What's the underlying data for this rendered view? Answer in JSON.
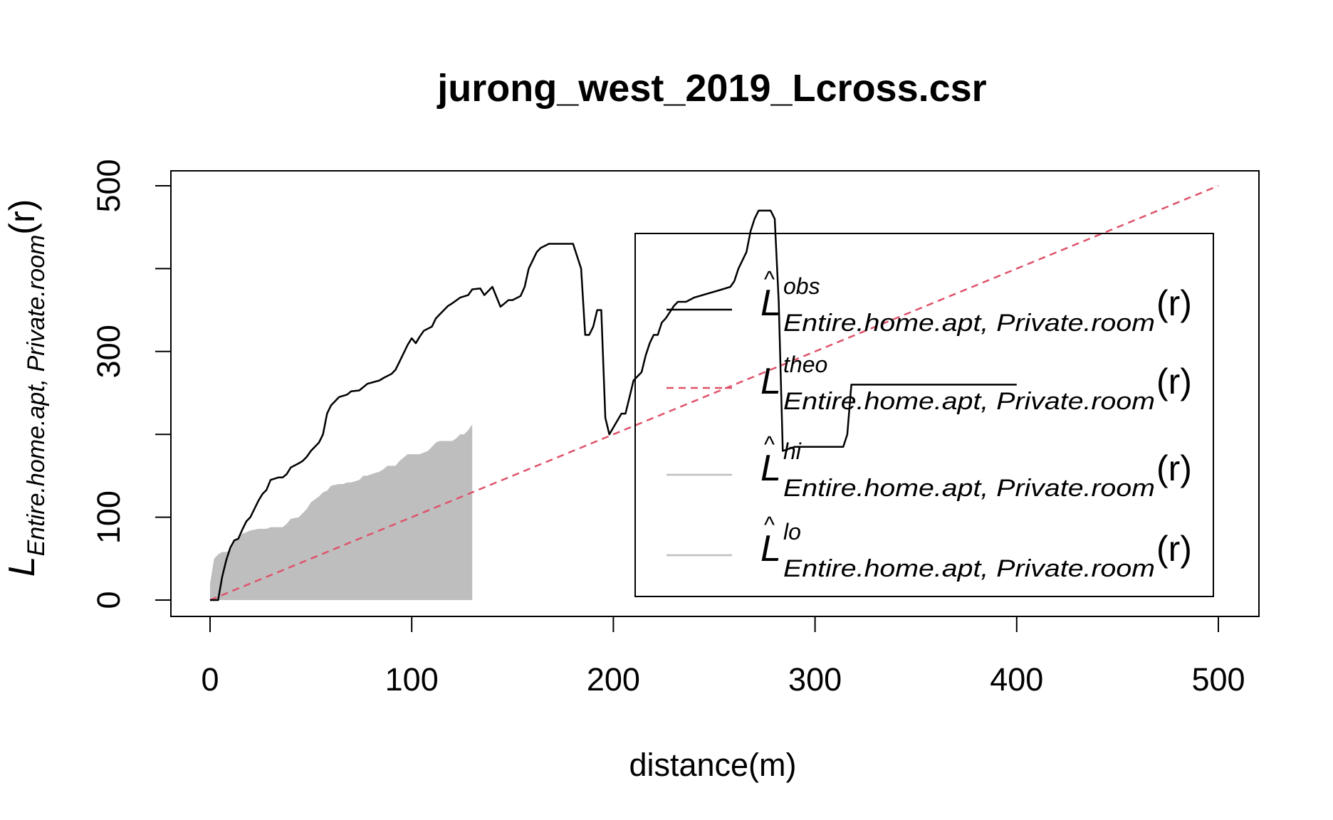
{
  "chart_data": {
    "type": "line",
    "title": "jurong_west_2019_Lcross.csr",
    "xlabel": "distance(m)",
    "ylabel": {
      "main": "L",
      "subscript": "Entire.home.apt, Private.room",
      "argument": "(r)"
    },
    "xlim": [
      0,
      500
    ],
    "ylim": [
      0,
      500
    ],
    "x_ticks": [
      "0",
      "100",
      "200",
      "300",
      "400",
      "500"
    ],
    "y_ticks": [
      "0",
      "100",
      "300",
      "500"
    ],
    "colors": {
      "obs": "#000000",
      "theo": "#DF536B",
      "envelope": "#BEBEBE"
    },
    "legend": {
      "placement": "right",
      "entries": [
        {
          "key": "obs",
          "main": "L",
          "hat": "^",
          "superscript": "obs",
          "subscript": "Entire.home.apt, Private.room",
          "argument": "(r)"
        },
        {
          "key": "theo",
          "main": "L",
          "hat": "",
          "superscript": "theo",
          "subscript": "Entire.home.apt, Private.room",
          "argument": "(r)"
        },
        {
          "key": "hi",
          "main": "L",
          "hat": "^",
          "superscript": "hi",
          "subscript": "Entire.home.apt, Private.room",
          "argument": "(r)"
        },
        {
          "key": "lo",
          "main": "L",
          "hat": "^",
          "superscript": "lo",
          "subscript": "Entire.home.apt, Private.room",
          "argument": "(r)"
        }
      ]
    },
    "series": [
      {
        "key": "obs",
        "x": [
          0,
          4,
          6,
          8,
          10,
          12,
          14,
          16,
          18,
          20,
          22,
          24,
          26,
          28,
          30,
          34,
          36,
          38,
          40,
          44,
          46,
          48,
          50,
          54,
          56,
          58,
          60,
          62,
          64,
          68,
          70,
          74,
          78,
          84,
          86,
          90,
          92,
          94,
          96,
          98,
          100,
          102,
          104,
          106,
          110,
          112,
          114,
          118,
          120,
          124,
          128,
          130,
          134,
          136,
          138,
          140,
          144,
          146,
          148,
          150,
          154,
          156,
          158,
          162,
          164,
          168,
          170,
          180,
          184,
          186,
          188,
          190,
          192,
          194,
          196,
          198,
          204,
          206,
          208,
          210,
          214,
          216,
          218,
          220,
          222,
          224,
          226,
          230,
          232,
          236,
          240,
          254,
          258,
          260,
          262,
          266,
          268,
          270,
          272,
          278,
          280,
          282,
          284,
          290,
          296,
          300,
          306,
          314,
          316,
          318,
          320,
          340,
          360,
          380,
          400
        ],
        "y": [
          0,
          0,
          28,
          48,
          63,
          72,
          74,
          85,
          95,
          100,
          110,
          120,
          128,
          133,
          145,
          148,
          148,
          152,
          160,
          165,
          168,
          173,
          180,
          190,
          200,
          225,
          235,
          240,
          245,
          248,
          252,
          253,
          261,
          265,
          268,
          273,
          278,
          288,
          298,
          308,
          316,
          310,
          318,
          325,
          330,
          340,
          345,
          355,
          358,
          365,
          368,
          375,
          376,
          368,
          373,
          378,
          354,
          358,
          362,
          362,
          367,
          378,
          400,
          420,
          425,
          430,
          430,
          430,
          400,
          320,
          320,
          330,
          350,
          350,
          220,
          200,
          225,
          225,
          245,
          265,
          275,
          295,
          310,
          320,
          320,
          335,
          340,
          355,
          360,
          360,
          365,
          375,
          378,
          385,
          400,
          420,
          445,
          460,
          470,
          470,
          460,
          360,
          180,
          185,
          185,
          185,
          185,
          185,
          200,
          260,
          260,
          260,
          260,
          260,
          260
        ]
      },
      {
        "key": "theo",
        "x": [
          0,
          500
        ],
        "y": [
          0,
          500
        ]
      },
      {
        "key": "envelope",
        "x": [
          0,
          2,
          4,
          6,
          8,
          10,
          12,
          14,
          16,
          18,
          20,
          22,
          24,
          26,
          28,
          30,
          36,
          38,
          40,
          44,
          46,
          48,
          50,
          54,
          56,
          58,
          60,
          64,
          66,
          68,
          70,
          74,
          76,
          78,
          80,
          84,
          86,
          88,
          90,
          92,
          94,
          96,
          98,
          100,
          102,
          104,
          106,
          108,
          110,
          112,
          114,
          116,
          118,
          120,
          122,
          124,
          126,
          128,
          130
        ],
        "hi": [
          20,
          50,
          55,
          58,
          58,
          60,
          70,
          75,
          80,
          82,
          84,
          85,
          86,
          86,
          86,
          88,
          88,
          92,
          98,
          100,
          105,
          110,
          118,
          125,
          130,
          132,
          138,
          140,
          140,
          142,
          142,
          145,
          150,
          150,
          152,
          155,
          158,
          162,
          162,
          162,
          168,
          172,
          176,
          176,
          176,
          176,
          178,
          180,
          185,
          190,
          192,
          192,
          192,
          192,
          195,
          200,
          200,
          205,
          212
        ],
        "lo": [
          0,
          0,
          0,
          0,
          0,
          0,
          0,
          0,
          0,
          0,
          0,
          0,
          0,
          0,
          0,
          0,
          0,
          0,
          0,
          0,
          0,
          0,
          0,
          0,
          0,
          0,
          0,
          0,
          0,
          0,
          0,
          0,
          0,
          0,
          0,
          0,
          0,
          0,
          0,
          0,
          0,
          0,
          0,
          0,
          0,
          0,
          0,
          0,
          0,
          0,
          0,
          0,
          0,
          0,
          0,
          0,
          0,
          0,
          0
        ]
      }
    ]
  }
}
